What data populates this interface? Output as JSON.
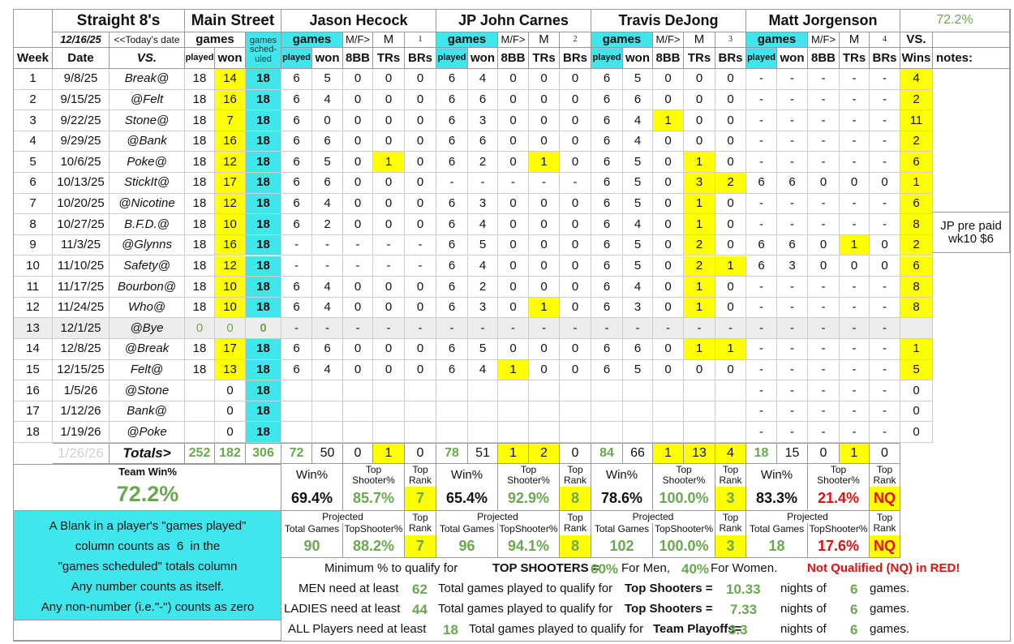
{
  "header": {
    "title": "Straight 8's",
    "venue": "Main Street",
    "today": "12/16/25",
    "today_note": "<<Today's date",
    "team_pct": "72.2%",
    "games": "games",
    "sched": "games sched-uled",
    "vs": "VS.",
    "players": [
      {
        "name": "Jason Hecock",
        "games": "games",
        "mf": "M/F>",
        "gender": "M",
        "num": "1"
      },
      {
        "name": "JP John Carnes",
        "games": "games",
        "mf": "M/F>",
        "gender": "M",
        "num": "2"
      },
      {
        "name": "Travis DeJong",
        "games": "games",
        "mf": "M/F>",
        "gender": "M",
        "num": "3"
      },
      {
        "name": "Matt Jorgenson",
        "games": "games",
        "mf": "M/F>",
        "gender": "M",
        "num": "4"
      }
    ]
  },
  "columns": [
    "Week",
    "Date",
    "VS.",
    "played",
    "won",
    "played",
    "won",
    "8BB",
    "TRs",
    "BRs",
    "played",
    "won",
    "8BB",
    "TRs",
    "BRs",
    "played",
    "won",
    "8BB",
    "TRs",
    "BRs",
    "played",
    "won",
    "8BB",
    "TRs",
    "BRs",
    "Wins",
    "notes:"
  ],
  "rows": [
    [
      "1",
      "9/8/25",
      "Break@",
      "18",
      "14",
      "18",
      "6",
      "5",
      "0",
      "0",
      "0",
      "6",
      "4",
      "0",
      "0",
      "0",
      "6",
      "5",
      "0",
      "0",
      "0",
      "-",
      "-",
      "-",
      "-",
      "-",
      "4"
    ],
    [
      "2",
      "9/15/25",
      "@Felt",
      "18",
      "16",
      "18",
      "6",
      "4",
      "0",
      "0",
      "0",
      "6",
      "6",
      "0",
      "0",
      "0",
      "6",
      "6",
      "0",
      "0",
      "0",
      "-",
      "-",
      "-",
      "-",
      "-",
      "2"
    ],
    [
      "3",
      "9/22/25",
      "Stone@",
      "18",
      "7",
      "18",
      "6",
      "0",
      "0",
      "0",
      "0",
      "6",
      "3",
      "0",
      "0",
      "0",
      "6",
      "4",
      "1",
      "0",
      "0",
      "-",
      "-",
      "-",
      "-",
      "-",
      "11"
    ],
    [
      "4",
      "9/29/25",
      "@Bank",
      "18",
      "16",
      "18",
      "6",
      "6",
      "0",
      "0",
      "0",
      "6",
      "6",
      "0",
      "0",
      "0",
      "6",
      "4",
      "0",
      "0",
      "0",
      "-",
      "-",
      "-",
      "-",
      "-",
      "2"
    ],
    [
      "5",
      "10/6/25",
      "Poke@",
      "18",
      "12",
      "18",
      "6",
      "5",
      "0",
      "1",
      "0",
      "6",
      "2",
      "0",
      "1",
      "0",
      "6",
      "5",
      "0",
      "1",
      "0",
      "-",
      "-",
      "-",
      "-",
      "-",
      "6"
    ],
    [
      "6",
      "10/13/25",
      "StickIt@",
      "18",
      "17",
      "18",
      "6",
      "6",
      "0",
      "0",
      "0",
      "-",
      "-",
      "-",
      "-",
      "-",
      "6",
      "5",
      "0",
      "3",
      "2",
      "6",
      "6",
      "0",
      "0",
      "0",
      "1"
    ],
    [
      "7",
      "10/20/25",
      "@Nicotine",
      "18",
      "12",
      "18",
      "6",
      "4",
      "0",
      "0",
      "0",
      "6",
      "3",
      "0",
      "0",
      "0",
      "6",
      "5",
      "0",
      "1",
      "0",
      "-",
      "-",
      "-",
      "-",
      "-",
      "6"
    ],
    [
      "8",
      "10/27/25",
      "B.F.D.@",
      "18",
      "10",
      "18",
      "6",
      "2",
      "0",
      "0",
      "0",
      "6",
      "4",
      "0",
      "0",
      "0",
      "6",
      "4",
      "0",
      "1",
      "0",
      "-",
      "-",
      "-",
      "-",
      "-",
      "8"
    ],
    [
      "9",
      "11/3/25",
      "@Glynns",
      "18",
      "16",
      "18",
      "-",
      "-",
      "-",
      "-",
      "-",
      "6",
      "5",
      "0",
      "0",
      "0",
      "6",
      "5",
      "0",
      "2",
      "0",
      "6",
      "6",
      "0",
      "1",
      "0",
      "2"
    ],
    [
      "10",
      "11/10/25",
      "Safety@",
      "18",
      "12",
      "18",
      "-",
      "-",
      "-",
      "-",
      "-",
      "6",
      "4",
      "0",
      "0",
      "0",
      "6",
      "5",
      "0",
      "2",
      "1",
      "6",
      "3",
      "0",
      "0",
      "0",
      "6"
    ],
    [
      "11",
      "11/17/25",
      "Bourbon@",
      "18",
      "10",
      "18",
      "6",
      "4",
      "0",
      "0",
      "0",
      "6",
      "2",
      "0",
      "0",
      "0",
      "6",
      "4",
      "0",
      "1",
      "0",
      "-",
      "-",
      "-",
      "-",
      "-",
      "8"
    ],
    [
      "12",
      "11/24/25",
      "Who@",
      "18",
      "10",
      "18",
      "6",
      "4",
      "0",
      "0",
      "0",
      "6",
      "3",
      "0",
      "1",
      "0",
      "6",
      "3",
      "0",
      "1",
      "0",
      "-",
      "-",
      "-",
      "-",
      "-",
      "8"
    ],
    [
      "13",
      "12/1/25",
      "@Bye",
      "0",
      "0",
      "0",
      "-",
      "-",
      "-",
      "-",
      "-",
      "-",
      "-",
      "-",
      "-",
      "-",
      "-",
      "-",
      "-",
      "-",
      "-",
      "-",
      "-",
      "-",
      "-",
      "-",
      null
    ],
    [
      "14",
      "12/8/25",
      "@Break",
      "18",
      "17",
      "18",
      "6",
      "6",
      "0",
      "0",
      "0",
      "6",
      "5",
      "0",
      "0",
      "0",
      "6",
      "6",
      "0",
      "1",
      "1",
      "-",
      "-",
      "-",
      "-",
      "-",
      "1"
    ],
    [
      "15",
      "12/15/25",
      "Felt@",
      "18",
      "13",
      "18",
      "6",
      "4",
      "0",
      "0",
      "0",
      "6",
      "4",
      "1",
      "0",
      "0",
      "6",
      "5",
      "0",
      "0",
      "0",
      "-",
      "-",
      "-",
      "-",
      "-",
      "5"
    ],
    [
      "16",
      "1/5/26",
      "@Stone",
      null,
      "0",
      "18",
      null,
      null,
      null,
      null,
      null,
      null,
      null,
      null,
      null,
      null,
      null,
      null,
      null,
      null,
      null,
      "-",
      "-",
      "-",
      "-",
      "-",
      "0"
    ],
    [
      "17",
      "1/12/26",
      "Bank@",
      null,
      "0",
      "18",
      null,
      null,
      null,
      null,
      null,
      null,
      null,
      null,
      null,
      null,
      null,
      null,
      null,
      null,
      null,
      "-",
      "-",
      "-",
      "-",
      "-",
      "0"
    ],
    [
      "18",
      "1/19/26",
      "@Poke",
      null,
      "0",
      "18",
      null,
      null,
      null,
      null,
      null,
      null,
      null,
      null,
      null,
      null,
      null,
      null,
      null,
      null,
      null,
      "-",
      "-",
      "-",
      "-",
      "-",
      "0"
    ]
  ],
  "note": [
    "JP pre paid",
    "wk10 $6"
  ],
  "totals": [
    "1/26/26",
    "Totals>",
    "252",
    "182",
    "306",
    "72",
    "50",
    "0",
    "1",
    "0",
    "78",
    "51",
    "1",
    "2",
    "0",
    "84",
    "66",
    "1",
    "13",
    "4",
    "18",
    "15",
    "0",
    "1",
    "0"
  ],
  "team_win": {
    "label": "Team Win%",
    "value": "72.2%"
  },
  "stats": {
    "labels": [
      "Win%",
      "Top Shooter%",
      "Top Rank"
    ],
    "players": [
      [
        "69.4%",
        "85.7%",
        "7"
      ],
      [
        "65.4%",
        "92.9%",
        "8"
      ],
      [
        "78.6%",
        "100.0%",
        "3"
      ],
      [
        "83.3%",
        "21.4%",
        "NQ"
      ]
    ]
  },
  "projected": {
    "title": "Projected",
    "labels": [
      "Total Games",
      "TopShooter%",
      "Top Rank"
    ],
    "players": [
      [
        "90",
        "88.2%",
        "7"
      ],
      [
        "96",
        "94.1%",
        "8"
      ],
      [
        "102",
        "100.0%",
        "3"
      ],
      [
        "18",
        "17.6%",
        "NQ"
      ]
    ]
  },
  "legend": [
    "A Blank in a player's \"games played\"",
    "column counts as  6  in the",
    "\"games scheduled\" totals column",
    "Any number counts as itself.",
    "Any non-number (i.e.\"-\") counts as zero"
  ],
  "rules": [
    [
      "Minimum % to qualify for",
      "TOP SHOOTERS =",
      "60%",
      "For Men,",
      "40%",
      "For Women.",
      "Not Qualified (NQ) in RED!"
    ],
    [
      "MEN need at least",
      "62",
      "Total games played to qualify for",
      "Top Shooters =",
      "10.33",
      "nights of",
      "6",
      "games."
    ],
    [
      "LADIES need at least",
      "44",
      "Total games played to qualify for",
      "Top Shooters =",
      "7.33",
      "nights of",
      "6",
      "games."
    ],
    [
      "ALL Players need at least",
      "18",
      "Total games played to qualify for",
      "Team Playoffs=",
      "3.3",
      "nights of",
      "6",
      "games."
    ]
  ]
}
